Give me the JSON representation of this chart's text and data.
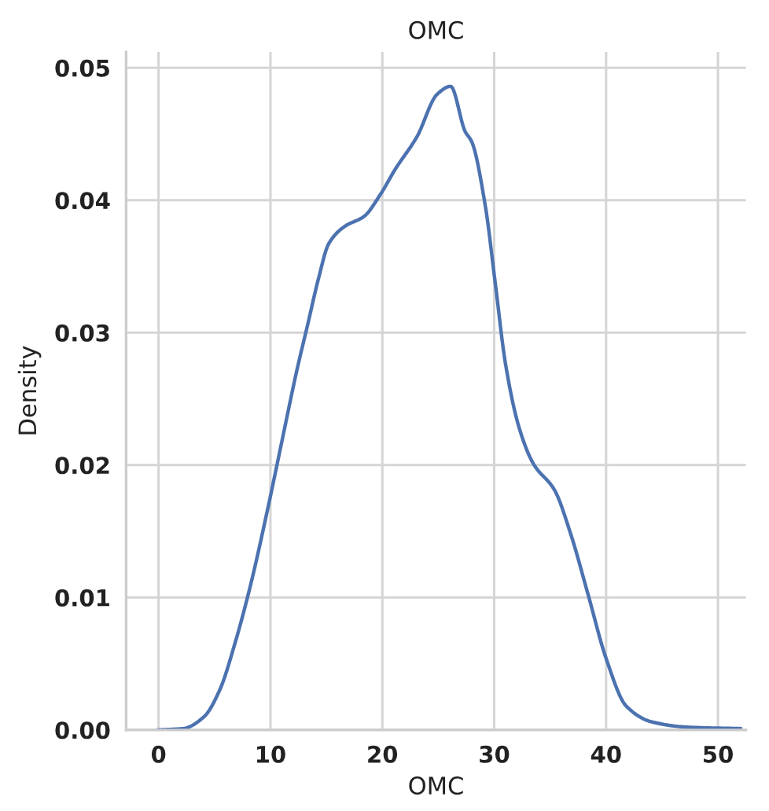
{
  "chart_data": {
    "type": "line",
    "title": "OMC",
    "xlabel": "OMC",
    "ylabel": "Density",
    "series": [
      {
        "color": "#4c72b0",
        "x": [
          0,
          2.2,
          4.07,
          5.46,
          6.85,
          8.24,
          9.81,
          11.0,
          12.4,
          13.3,
          14.3,
          15.2,
          16.6,
          18.4,
          19.8,
          21.2,
          23.1,
          24.9,
          26.1,
          27.4,
          28.0,
          29.2,
          30.1,
          31.0,
          32.2,
          33.5,
          35.4,
          36.8,
          38.4,
          40.0,
          41.8,
          44.1,
          47.4,
          52.0
        ],
        "values": [
          0,
          0.0001,
          0.001,
          0.003,
          0.0066,
          0.011,
          0.0169,
          0.0217,
          0.0273,
          0.0305,
          0.0341,
          0.0367,
          0.038,
          0.0388,
          0.0404,
          0.0424,
          0.0448,
          0.048,
          0.0486,
          0.0452,
          0.0444,
          0.0396,
          0.0337,
          0.0277,
          0.0229,
          0.0201,
          0.0181,
          0.0149,
          0.0102,
          0.0054,
          0.0018,
          0.0006,
          0.0002,
          0.0001
        ]
      }
    ],
    "xlim": [
      -2.9,
      52.5
    ],
    "ylim": [
      0,
      0.0512
    ],
    "xticks": [
      0,
      10,
      20,
      30,
      40,
      50
    ],
    "yticks": [
      {
        "value": 0,
        "label": "0.00"
      },
      {
        "value": 0.01,
        "label": "0.01"
      },
      {
        "value": 0.02,
        "label": "0.02"
      },
      {
        "value": 0.03,
        "label": "0.03"
      },
      {
        "value": 0.04,
        "label": "0.04"
      },
      {
        "value": 0.05,
        "label": "0.05"
      }
    ],
    "grid": true,
    "marker": "none",
    "line_style": "solid"
  }
}
